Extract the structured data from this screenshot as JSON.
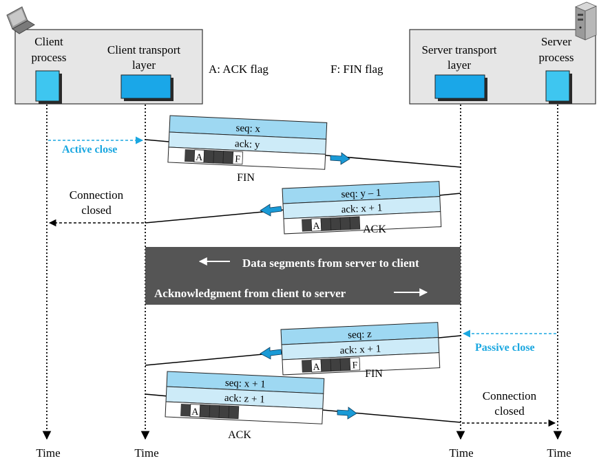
{
  "client_box": {
    "process_label": [
      "Client",
      "process"
    ],
    "transport_label": [
      "Client transport",
      "layer"
    ]
  },
  "server_box": {
    "transport_label": [
      "Server transport",
      "layer"
    ],
    "process_label": [
      "Server",
      "process"
    ]
  },
  "legend": {
    "ack_flag": "A: ACK flag",
    "fin_flag": "F: FIN flag"
  },
  "segments": {
    "fin1": {
      "seq": "seq: x",
      "ack": "ack: y",
      "flag_a": "A",
      "flag_f": "F",
      "name": "FIN"
    },
    "ack1": {
      "seq": "seq: y – 1",
      "ack": "ack: x + 1",
      "flag_a": "A",
      "name": "ACK"
    },
    "fin2": {
      "seq": "seq: z",
      "ack": "ack: x + 1",
      "flag_a": "A",
      "flag_f": "F",
      "name": "FIN"
    },
    "ack2": {
      "seq": "seq: x + 1",
      "ack": "ack: z + 1",
      "flag_a": "A",
      "name": "ACK"
    }
  },
  "annotations": {
    "active_close": "Active close",
    "passive_close": "Passive close",
    "connection_closed_left": [
      "Connection",
      "closed"
    ],
    "connection_closed_right": [
      "Connection",
      "closed"
    ]
  },
  "data_block": {
    "line1": "Data segments from server to client",
    "line2": "Acknowledgment from client to server"
  },
  "time_labels": [
    "Time",
    "Time",
    "Time",
    "Time"
  ],
  "colors": {
    "box_fill": "#e6e6e6",
    "process_blue": "#3ec6f0",
    "header_blue": "#9ed8f2",
    "header_light": "#cdebf8",
    "flag_dark": "#404040",
    "accent_blue": "#1aa7e0",
    "data_block": "#555555",
    "arrow_blue": "#1a9ad6"
  },
  "icons": [
    "laptop-icon",
    "server-tower-icon"
  ]
}
